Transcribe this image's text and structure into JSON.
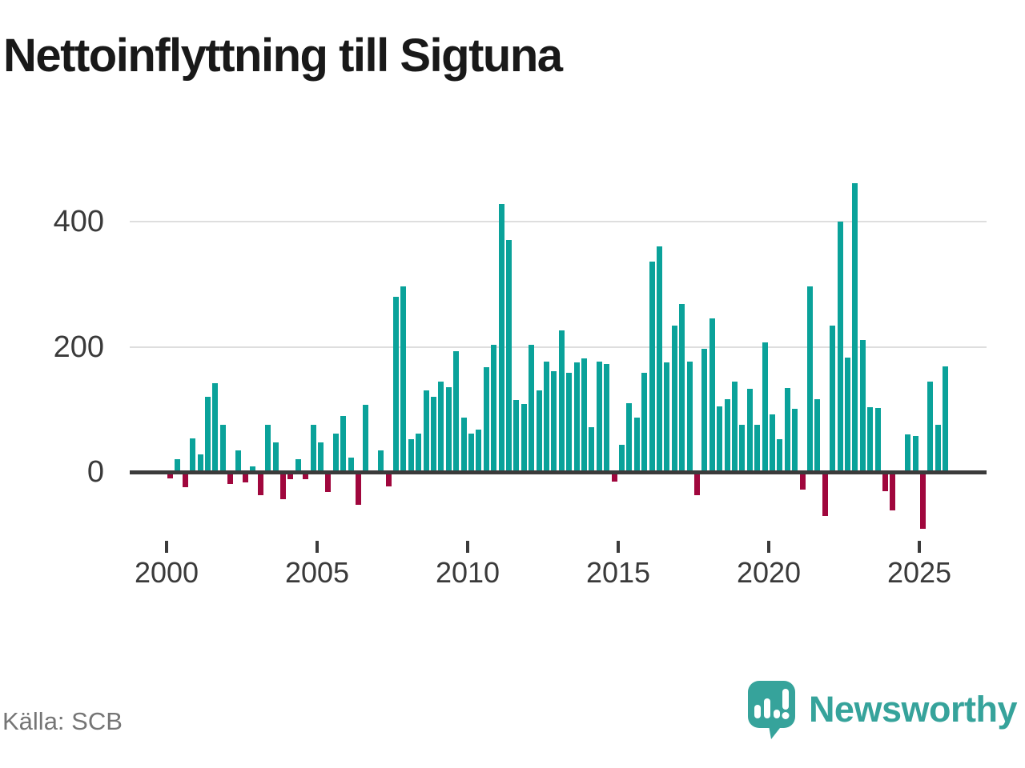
{
  "header": {
    "title": "Nettoinflyttning till Sigtuna"
  },
  "footer": {
    "source": "Källa: SCB",
    "brand": "Newsworthy"
  },
  "chart_data": {
    "type": "bar",
    "title": "Nettoinflyttning till Sigtuna",
    "x": [
      "2000 Q1",
      "2000 Q2",
      "2000 Q3",
      "2000 Q4",
      "2001 Q1",
      "2001 Q2",
      "2001 Q3",
      "2001 Q4",
      "2002 Q1",
      "2002 Q2",
      "2002 Q3",
      "2002 Q4",
      "2003 Q1",
      "2003 Q2",
      "2003 Q3",
      "2003 Q4",
      "2004 Q1",
      "2004 Q2",
      "2004 Q3",
      "2004 Q4",
      "2005 Q1",
      "2005 Q2",
      "2005 Q3",
      "2005 Q4",
      "2006 Q1",
      "2006 Q2",
      "2006 Q3",
      "2006 Q4",
      "2007 Q1",
      "2007 Q2",
      "2007 Q3",
      "2007 Q4",
      "2008 Q1",
      "2008 Q2",
      "2008 Q3",
      "2008 Q4",
      "2009 Q1",
      "2009 Q2",
      "2009 Q3",
      "2009 Q4",
      "2010 Q1",
      "2010 Q2",
      "2010 Q3",
      "2010 Q4",
      "2011 Q1",
      "2011 Q2",
      "2011 Q3",
      "2011 Q4",
      "2012 Q1",
      "2012 Q2",
      "2012 Q3",
      "2012 Q4",
      "2013 Q1",
      "2013 Q2",
      "2013 Q3",
      "2013 Q4",
      "2014 Q1",
      "2014 Q2",
      "2014 Q3",
      "2014 Q4",
      "2015 Q1",
      "2015 Q2",
      "2015 Q3",
      "2015 Q4",
      "2016 Q1",
      "2016 Q2",
      "2016 Q3",
      "2016 Q4",
      "2017 Q1",
      "2017 Q2",
      "2017 Q3",
      "2017 Q4",
      "2018 Q1",
      "2018 Q2",
      "2018 Q3",
      "2018 Q4",
      "2019 Q1",
      "2019 Q2",
      "2019 Q3",
      "2019 Q4",
      "2020 Q1",
      "2020 Q2",
      "2020 Q3",
      "2020 Q4",
      "2021 Q1",
      "2021 Q2",
      "2021 Q3",
      "2021 Q4",
      "2022 Q1",
      "2022 Q2",
      "2022 Q3",
      "2022 Q4",
      "2023 Q1",
      "2023 Q2",
      "2023 Q3",
      "2023 Q4",
      "2024 Q1",
      "2024 Q2",
      "2024 Q3",
      "2024 Q4",
      "2025 Q1",
      "2025 Q2",
      "2025 Q3",
      "2025 Q4"
    ],
    "values": [
      -6,
      20,
      -20,
      54,
      28,
      120,
      142,
      75,
      -15,
      35,
      -13,
      9,
      -33,
      75,
      48,
      -39,
      -8,
      21,
      -8,
      75,
      47,
      -28,
      61,
      89,
      23,
      -48,
      107,
      0,
      34,
      -19,
      280,
      297,
      52,
      62,
      130,
      120,
      144,
      136,
      193,
      87,
      61,
      68,
      168,
      204,
      428,
      371,
      115,
      109,
      204,
      131,
      177,
      161,
      227,
      158,
      175,
      182,
      72,
      177,
      173,
      -12,
      43,
      110,
      87,
      159,
      336,
      361,
      175,
      234,
      269,
      177,
      -33,
      197,
      246,
      105,
      117,
      145,
      76,
      133,
      76,
      207,
      92,
      53,
      134,
      101,
      -24,
      297,
      116,
      -67,
      234,
      400,
      183,
      462,
      211,
      104,
      102,
      -27,
      -57,
      0,
      60,
      58,
      -87,
      145,
      75,
      169
    ],
    "yticks": [
      0,
      200,
      400
    ],
    "xticks": [
      "2000",
      "2005",
      "2010",
      "2015",
      "2020",
      "2025"
    ],
    "ylim": [
      -110,
      480
    ],
    "grid": "horizontal",
    "legend": "none",
    "colors": {
      "positive": "#0aa29a",
      "negative": "#a0073d",
      "axis": "#3b3b3b",
      "grid": "#dedede",
      "label": "#3a3a3a",
      "brand": "#36a39b"
    }
  }
}
